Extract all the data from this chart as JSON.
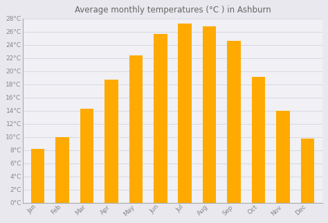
{
  "title": "Average monthly temperatures (°C ) in Ashburn",
  "months": [
    "Jan",
    "Feb",
    "Mar",
    "Apr",
    "May",
    "Jun",
    "Jul",
    "Aug",
    "Sep",
    "Oct",
    "Nov",
    "Dec"
  ],
  "values": [
    8.2,
    10.0,
    14.3,
    18.7,
    22.4,
    25.7,
    27.2,
    26.8,
    24.6,
    19.1,
    14.0,
    9.8
  ],
  "bar_color": "#FFAA00",
  "background_color": "#e8e8ee",
  "plot_bg_color": "#f0f0f5",
  "grid_color": "#d8d8e0",
  "ylim": [
    0,
    28
  ],
  "ytick_step": 2,
  "title_fontsize": 8.5,
  "tick_fontsize": 6.5,
  "ylabel_color": "#888888",
  "xlabel_color": "#888888",
  "bar_edge_color": "none",
  "bar_width": 0.55
}
